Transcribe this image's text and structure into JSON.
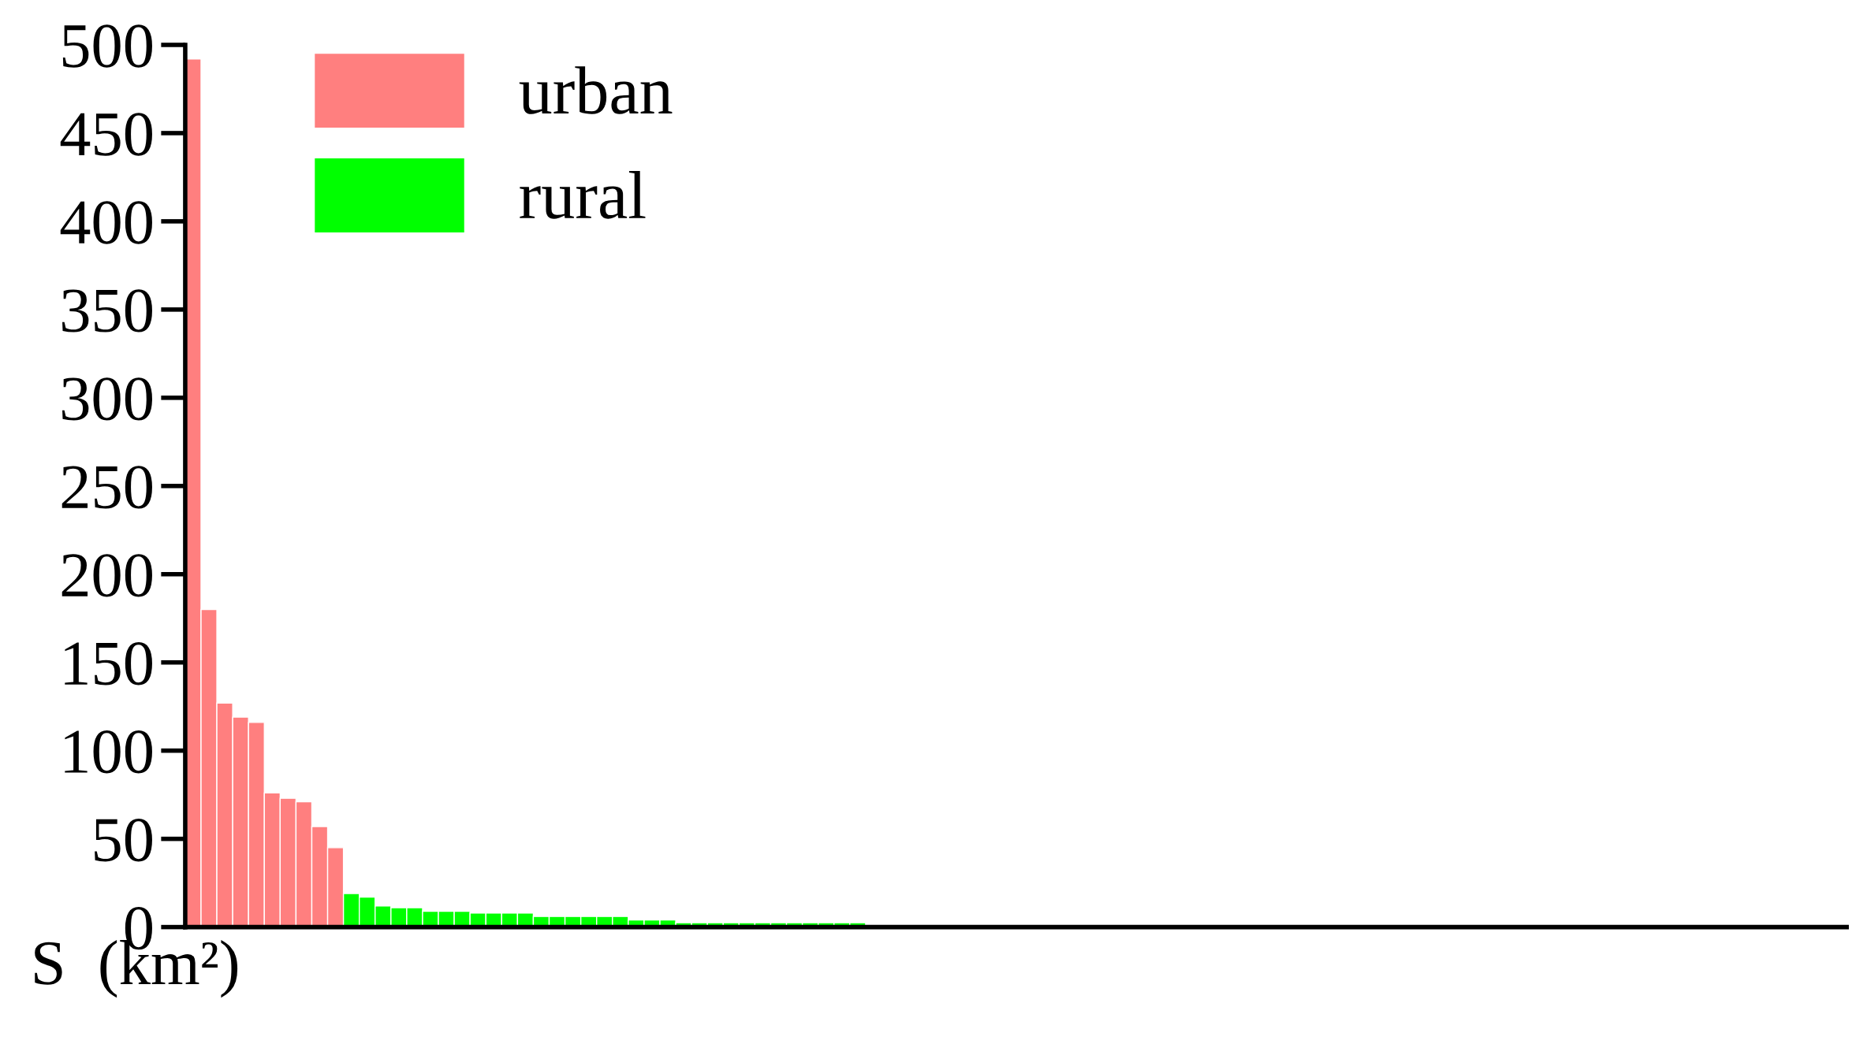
{
  "chart_data": {
    "type": "bar",
    "ylabel": "S  (km²)",
    "categories": [
      null,
      null,
      null,
      null,
      null,
      null,
      null,
      null,
      null,
      null,
      null,
      null,
      null,
      null,
      null,
      null,
      null,
      null,
      null,
      null,
      null,
      null,
      null,
      null,
      null,
      null,
      null,
      null,
      null,
      null,
      null,
      null,
      null,
      null,
      null,
      null,
      null,
      null,
      null,
      null,
      null,
      null,
      null,
      null,
      null,
      null,
      null,
      null,
      null,
      null,
      null,
      null,
      null,
      null,
      null,
      null,
      null,
      null,
      null,
      null,
      null,
      null,
      null,
      null,
      null,
      null,
      null,
      null,
      null,
      null,
      null,
      null,
      null,
      null,
      null,
      null,
      null,
      null,
      null,
      null,
      null,
      null,
      null,
      null,
      null,
      null,
      null,
      null,
      null,
      null,
      null,
      null,
      null,
      null,
      null,
      null,
      null,
      null,
      null,
      null,
      null,
      null,
      null,
      null,
      null
    ],
    "series": [
      {
        "name": "urban",
        "color": "#ff7f7f",
        "values": [
          492,
          180,
          127,
          119,
          116,
          76,
          73,
          71,
          57,
          45,
          null,
          null,
          null,
          null,
          null,
          null,
          null,
          null,
          null,
          null,
          null,
          null,
          null,
          null,
          null,
          null,
          null,
          null,
          null,
          null,
          null,
          null,
          null,
          null,
          null,
          null,
          null,
          null,
          null,
          null,
          null,
          null,
          null,
          null,
          null,
          null,
          null,
          null,
          null,
          null,
          null,
          null,
          null,
          null,
          null,
          null,
          null,
          null,
          null,
          null,
          null,
          null,
          null,
          null,
          null,
          null,
          null,
          null,
          null,
          null,
          null,
          null,
          null,
          null,
          null,
          null,
          null,
          null,
          null,
          null,
          null,
          null,
          null,
          null,
          null,
          null,
          null,
          null,
          null,
          null,
          null,
          null,
          null,
          null,
          null,
          null,
          null,
          null,
          null,
          null,
          null,
          null,
          null,
          null,
          null
        ]
      },
      {
        "name": "rural",
        "color": "#00ff00",
        "values": [
          null,
          null,
          null,
          null,
          null,
          null,
          null,
          null,
          null,
          null,
          19,
          17,
          12,
          11,
          11,
          9,
          9,
          9,
          8,
          8,
          8,
          8,
          6,
          6,
          6,
          6,
          6,
          6,
          4,
          4,
          4,
          2.5,
          2.5,
          2.5,
          2.5,
          2.5,
          2.5,
          2.5,
          2.5,
          2.5,
          2.5,
          2.5,
          2.5,
          null,
          null,
          null,
          null,
          null,
          null,
          null,
          null,
          null,
          null,
          null,
          null,
          null,
          null,
          null,
          null,
          null,
          null,
          null,
          null,
          null,
          null,
          null,
          null,
          null,
          null,
          null,
          null,
          null,
          null,
          null,
          null,
          null,
          null,
          null,
          null,
          null,
          null,
          null,
          null,
          null,
          null,
          null,
          null,
          null,
          null,
          null,
          null,
          null,
          null,
          null,
          null,
          null,
          null,
          null,
          null,
          null,
          null,
          null,
          null,
          null,
          null
        ]
      }
    ],
    "ylim": [
      0,
      500
    ],
    "yticks": [
      0,
      50,
      100,
      150,
      200,
      250,
      300,
      350,
      400,
      450,
      500
    ],
    "tick_labels": "y",
    "legend": "top left"
  }
}
